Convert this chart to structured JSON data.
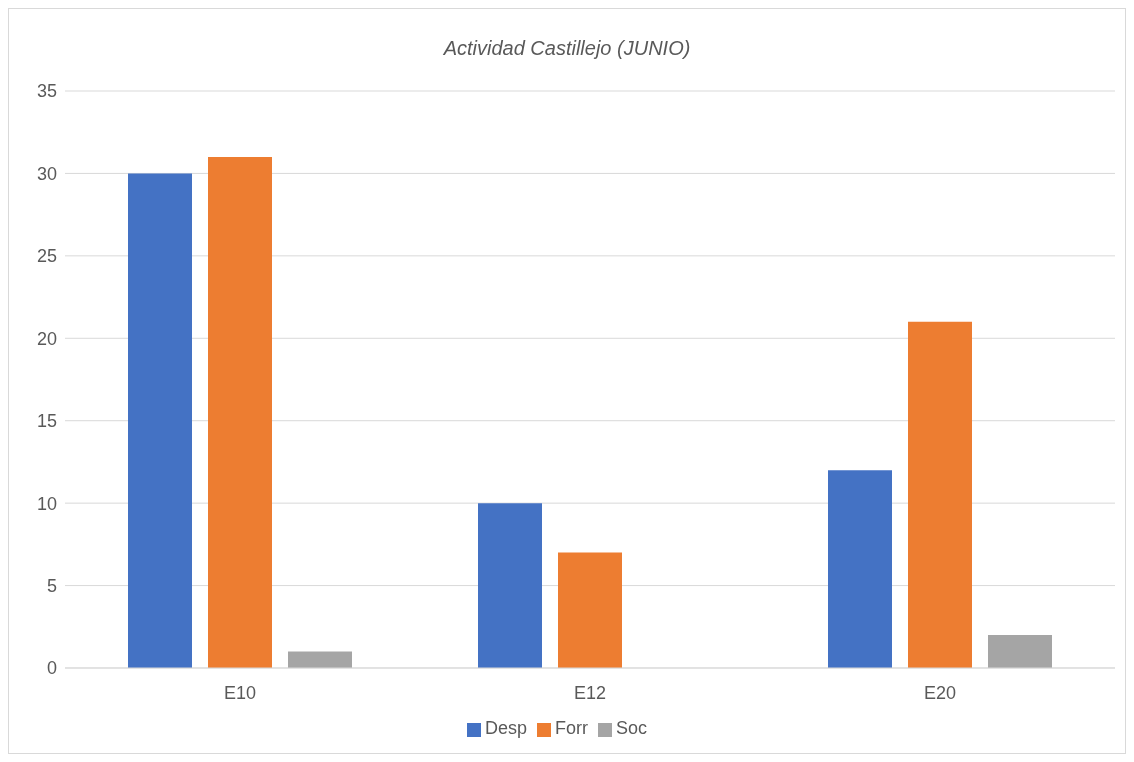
{
  "chart_data": {
    "type": "bar",
    "title": "Actividad Castillejo (JUNIO)",
    "categories": [
      "E10",
      "E12",
      "E20"
    ],
    "series": [
      {
        "name": "Desp",
        "color": "#4472c4",
        "values": [
          30,
          10,
          12
        ]
      },
      {
        "name": "Forr",
        "color": "#ed7d31",
        "values": [
          31,
          7,
          21
        ]
      },
      {
        "name": "Soc",
        "color": "#a5a5a5",
        "values": [
          1,
          0,
          2
        ]
      }
    ],
    "ylim": [
      0,
      35
    ],
    "yticks": [
      0,
      5,
      10,
      15,
      20,
      25,
      30,
      35
    ],
    "grid": "y",
    "legend": "bottom"
  }
}
